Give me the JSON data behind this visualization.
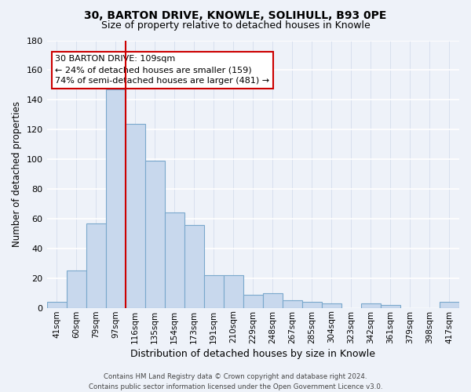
{
  "title_line1": "30, BARTON DRIVE, KNOWLE, SOLIHULL, B93 0PE",
  "title_line2": "Size of property relative to detached houses in Knowle",
  "xlabel": "Distribution of detached houses by size in Knowle",
  "ylabel": "Number of detached properties",
  "bar_labels": [
    "41sqm",
    "60sqm",
    "79sqm",
    "97sqm",
    "116sqm",
    "135sqm",
    "154sqm",
    "173sqm",
    "191sqm",
    "210sqm",
    "229sqm",
    "248sqm",
    "267sqm",
    "285sqm",
    "304sqm",
    "323sqm",
    "342sqm",
    "361sqm",
    "379sqm",
    "398sqm",
    "417sqm"
  ],
  "bar_values": [
    4,
    25,
    57,
    147,
    124,
    99,
    64,
    56,
    22,
    22,
    9,
    10,
    5,
    4,
    3,
    0,
    3,
    2,
    0,
    0,
    4
  ],
  "bar_color": "#c8d8ed",
  "bar_edge_color": "#7aa8cc",
  "vline_color": "#cc0000",
  "ylim": [
    0,
    180
  ],
  "yticks": [
    0,
    20,
    40,
    60,
    80,
    100,
    120,
    140,
    160,
    180
  ],
  "annotation_title": "30 BARTON DRIVE: 109sqm",
  "annotation_line1": "← 24% of detached houses are smaller (159)",
  "annotation_line2": "74% of semi-detached houses are larger (481) →",
  "footer_line1": "Contains HM Land Registry data © Crown copyright and database right 2024.",
  "footer_line2": "Contains public sector information licensed under the Open Government Licence v3.0.",
  "bg_color": "#eef2f9",
  "grid_color": "#d8e0ee",
  "title1_fontsize": 10,
  "title2_fontsize": 9
}
